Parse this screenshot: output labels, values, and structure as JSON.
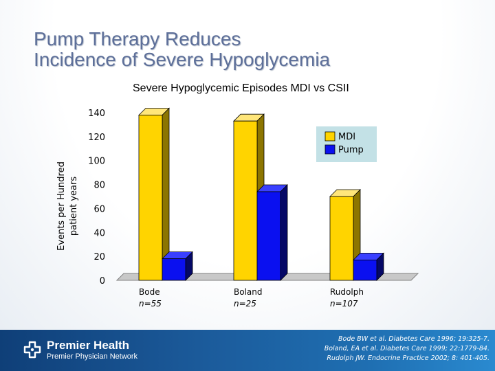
{
  "slide": {
    "title_lines": [
      "Pump Therapy Reduces",
      "Incidence of Severe Hypoglycemia"
    ]
  },
  "chart_data": {
    "type": "bar",
    "title": "Severe  Hypoglycemic Episodes MDI vs CSII",
    "ylabel_lines": [
      "Events per Hundred",
      "patient years"
    ],
    "xlabel": "",
    "ylim": [
      0,
      140
    ],
    "yticks": [
      0,
      20,
      40,
      60,
      80,
      100,
      120,
      140
    ],
    "categories": [
      "Bode",
      "Boland",
      "Rudolph"
    ],
    "category_sublabels": [
      "n=55",
      "n=25",
      "n=107"
    ],
    "series": [
      {
        "name": "MDI",
        "values": [
          138,
          133,
          70
        ],
        "color": "#ffd400",
        "side_color": "#8c7500",
        "top_color": "#ffe67a"
      },
      {
        "name": "Pump",
        "values": [
          18,
          74,
          17
        ],
        "color": "#0a10f0",
        "side_color": "#050866",
        "top_color": "#3a40ff"
      }
    ],
    "legend_position": "top-right",
    "legend_bg": "#c3e1e6"
  },
  "footer": {
    "brand": "Premier Health",
    "network": "Premier Physician Network",
    "citations": [
      "Bode BW et al. Diabetes Care 1996; 19:325-7.",
      "Boland, EA et al. Diabetes Care 1999; 22:1779-84.",
      "Rudolph JW. Endocrine Practice 2002; 8: 401-405."
    ]
  }
}
